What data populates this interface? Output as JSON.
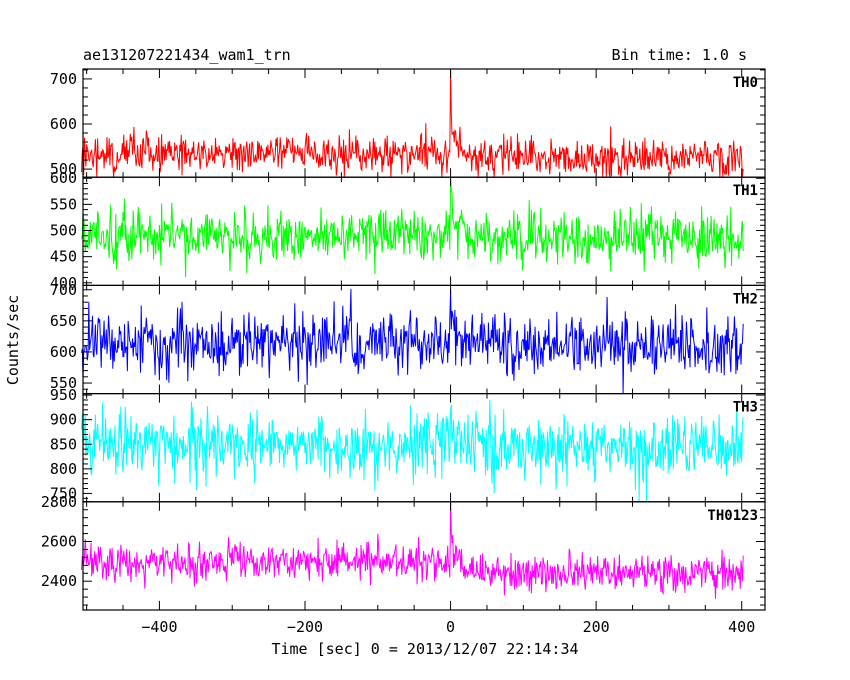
{
  "header": {
    "obs_name": "ae131207221434_wam1_trn",
    "bin_time": "Bin time: 1.0 s"
  },
  "axes": {
    "xlabel": "Time [sec] 0 = 2013/12/07 22:14:34",
    "ylabel": "Counts/sec"
  },
  "chart_data": {
    "type": "line",
    "title": "ae131207221434_wam1_trn",
    "subtitle": "Bin time: 1.0 s",
    "xlabel": "Time [sec] 0 = 2013/12/07 22:14:34",
    "ylabel": "Counts/sec",
    "x_range": [
      -507,
      402
    ],
    "xlim": [
      -505,
      432
    ],
    "x_step": 1.0,
    "x_ticks": [
      -400,
      -200,
      0,
      200,
      400
    ],
    "x_tick_labels": [
      "−400",
      "−200",
      "0",
      "200",
      "400"
    ],
    "grid": false,
    "panels": [
      {
        "name": "TH0",
        "color": "#ff0000",
        "ylim": [
          482,
          722
        ],
        "y_ticks": [
          500,
          600,
          700
        ],
        "y_tick_labels": [
          "500",
          "600",
          "700"
        ],
        "baseline": 535,
        "noise": 22,
        "spike": {
          "x": 0,
          "peak": 722,
          "level": 610
        },
        "approx": {
          "pre_event_mean": 535,
          "peak_at_t0": 722,
          "post_event_mean": 525
        }
      },
      {
        "name": "TH1",
        "color": "#00ff00",
        "ylim": [
          395,
          602
        ],
        "y_ticks": [
          400,
          450,
          500,
          550,
          600
        ],
        "y_tick_labels": [
          "400",
          "450",
          "500",
          "550",
          "600"
        ],
        "baseline": 490,
        "noise": 24,
        "spike": {
          "x": 0,
          "peak": 600,
          "level": 535
        },
        "approx": {
          "pre_event_mean": 490,
          "peak_at_t0": 600,
          "post_event_mean": 485
        }
      },
      {
        "name": "TH2",
        "color": "#0000ff",
        "ylim": [
          533,
          707
        ],
        "y_ticks": [
          550,
          600,
          650,
          700
        ],
        "y_tick_labels": [
          "550",
          "600",
          "650",
          "700"
        ],
        "baseline": 615,
        "noise": 24,
        "spike": {
          "x": 0,
          "peak": 700,
          "level": 645
        },
        "approx": {
          "pre_event_mean": 615,
          "peak_at_t0": 700,
          "post_event_mean": 610
        }
      },
      {
        "name": "TH3",
        "color": "#00ffff",
        "ylim": [
          733,
          953
        ],
        "y_ticks": [
          750,
          800,
          850,
          900,
          950
        ],
        "y_tick_labels": [
          "750",
          "800",
          "850",
          "900",
          "950"
        ],
        "baseline": 850,
        "noise": 32,
        "spike": {
          "x": 0,
          "peak": 920,
          "level": 880
        },
        "approx": {
          "pre_event_mean": 850,
          "peak_at_t0": 920,
          "post_event_mean": 845
        }
      },
      {
        "name": "TH0123",
        "color": "#ff00ff",
        "ylim": [
          2255,
          2800
        ],
        "y_ticks": [
          2400,
          2600,
          2800
        ],
        "y_tick_labels": [
          "2400",
          "2600",
          "2800"
        ],
        "baseline": 2500,
        "noise": 48,
        "spike": {
          "x": 0,
          "peak": 2800,
          "level": 2640
        },
        "approx": {
          "pre_event_mean": 2500,
          "peak_at_t0": 2800,
          "post_event_mean": 2440
        }
      }
    ]
  }
}
